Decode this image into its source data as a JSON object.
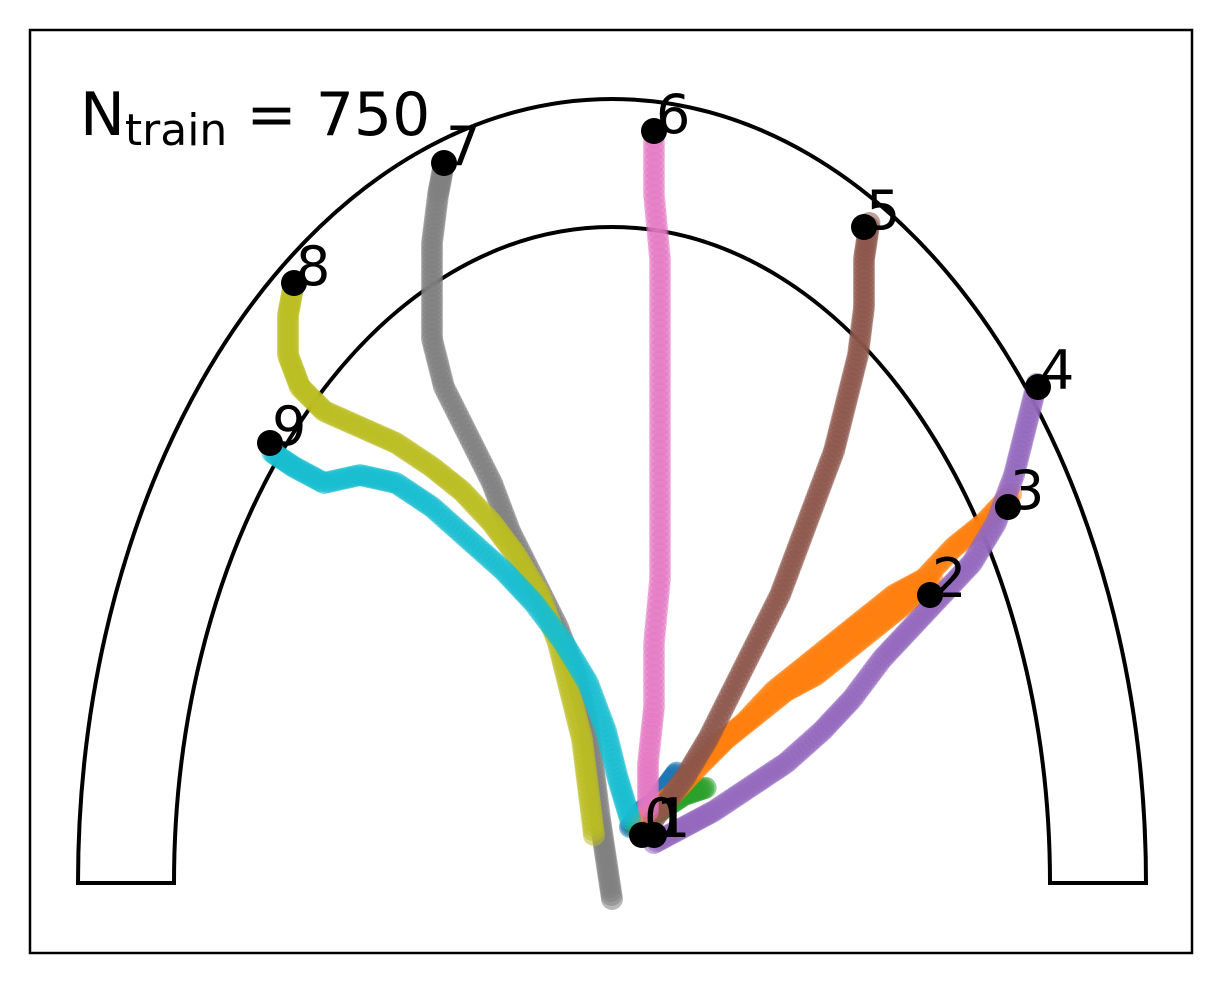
{
  "chart_data": {
    "type": "scatter",
    "annotation": {
      "main": "N",
      "subscript": "train",
      "rest": " = 750"
    },
    "axes": {
      "ticks": "none",
      "grid": false,
      "legend": "none",
      "frame": true
    },
    "arch": {
      "center": [
        0,
        0
      ],
      "outer_radius": 0.89,
      "outer_height": 0.98,
      "inner_radius": 0.73,
      "inner_height": 0.82,
      "xlim": [
        -1.0,
        1.0
      ],
      "ylim": [
        -0.08,
        1.1
      ]
    },
    "series": [
      {
        "label": "0",
        "color": "#1f77b4",
        "points": [
          [
            0.03,
            0.07
          ],
          [
            0.05,
            0.09
          ],
          [
            0.07,
            0.1
          ],
          [
            0.09,
            0.12
          ],
          [
            0.11,
            0.14
          ]
        ],
        "end": [
          0.05,
          0.06
        ]
      },
      {
        "label": "1",
        "color": "#2ca02c",
        "points": [
          [
            0.04,
            0.07
          ],
          [
            0.08,
            0.09
          ],
          [
            0.12,
            0.11
          ],
          [
            0.16,
            0.12
          ]
        ],
        "end": [
          0.07,
          0.06
        ]
      },
      {
        "label": "2",
        "color": "#ff7f0e",
        "points": [
          [
            0.05,
            0.08
          ],
          [
            0.1,
            0.11
          ],
          [
            0.15,
            0.15
          ],
          [
            0.19,
            0.18
          ],
          [
            0.24,
            0.21
          ],
          [
            0.29,
            0.24
          ],
          [
            0.34,
            0.26
          ],
          [
            0.39,
            0.29
          ],
          [
            0.44,
            0.32
          ],
          [
            0.49,
            0.35
          ],
          [
            0.54,
            0.38
          ]
        ],
        "end": [
          0.53,
          0.36
        ]
      },
      {
        "label": "3",
        "color": "#ff7f0e",
        "points": [
          [
            0.17,
            0.17
          ],
          [
            0.22,
            0.2
          ],
          [
            0.27,
            0.24
          ],
          [
            0.32,
            0.27
          ],
          [
            0.37,
            0.3
          ],
          [
            0.42,
            0.33
          ],
          [
            0.47,
            0.36
          ],
          [
            0.52,
            0.38
          ],
          [
            0.57,
            0.42
          ],
          [
            0.62,
            0.45
          ],
          [
            0.67,
            0.49
          ]
        ],
        "end": [
          0.66,
          0.47
        ]
      },
      {
        "label": "4",
        "color": "#9467bd",
        "points": [
          [
            0.07,
            0.05
          ],
          [
            0.12,
            0.07
          ],
          [
            0.17,
            0.09
          ],
          [
            0.23,
            0.12
          ],
          [
            0.29,
            0.15
          ],
          [
            0.35,
            0.19
          ],
          [
            0.4,
            0.23
          ],
          [
            0.45,
            0.28
          ],
          [
            0.5,
            0.32
          ],
          [
            0.55,
            0.36
          ],
          [
            0.6,
            0.4
          ],
          [
            0.64,
            0.45
          ],
          [
            0.67,
            0.51
          ],
          [
            0.69,
            0.57
          ],
          [
            0.71,
            0.63
          ]
        ],
        "end": [
          0.71,
          0.62
        ]
      },
      {
        "label": "5",
        "color": "#8c564b",
        "points": [
          [
            0.07,
            0.08
          ],
          [
            0.12,
            0.13
          ],
          [
            0.16,
            0.18
          ],
          [
            0.2,
            0.24
          ],
          [
            0.24,
            0.3
          ],
          [
            0.28,
            0.36
          ],
          [
            0.31,
            0.42
          ],
          [
            0.34,
            0.48
          ],
          [
            0.37,
            0.54
          ],
          [
            0.39,
            0.6
          ],
          [
            0.41,
            0.66
          ],
          [
            0.42,
            0.72
          ],
          [
            0.42,
            0.78
          ],
          [
            0.43,
            0.83
          ]
        ],
        "end": [
          0.42,
          0.82
        ]
      },
      {
        "label": "6",
        "color": "#e377c2",
        "points": [
          [
            0.06,
            0.09
          ],
          [
            0.06,
            0.15
          ],
          [
            0.07,
            0.22
          ],
          [
            0.07,
            0.3
          ],
          [
            0.08,
            0.38
          ],
          [
            0.08,
            0.46
          ],
          [
            0.08,
            0.54
          ],
          [
            0.08,
            0.62
          ],
          [
            0.08,
            0.7
          ],
          [
            0.08,
            0.78
          ],
          [
            0.07,
            0.86
          ],
          [
            0.07,
            0.94
          ]
        ],
        "end": [
          0.07,
          0.94
        ]
      },
      {
        "label": "7",
        "color": "#7f7f7f",
        "points": [
          [
            0.0,
            -0.02
          ],
          [
            -0.01,
            0.03
          ],
          [
            -0.02,
            0.08
          ],
          [
            -0.03,
            0.14
          ],
          [
            -0.04,
            0.2
          ],
          [
            -0.06,
            0.26
          ],
          [
            -0.09,
            0.32
          ],
          [
            -0.13,
            0.38
          ],
          [
            -0.17,
            0.44
          ],
          [
            -0.2,
            0.5
          ],
          [
            -0.24,
            0.56
          ],
          [
            -0.28,
            0.62
          ],
          [
            -0.3,
            0.68
          ],
          [
            -0.3,
            0.74
          ],
          [
            -0.3,
            0.8
          ],
          [
            -0.29,
            0.86
          ],
          [
            -0.28,
            0.9
          ]
        ],
        "end": [
          -0.28,
          0.9
        ]
      },
      {
        "label": "8",
        "color": "#bcbd22",
        "points": [
          [
            -0.03,
            0.06
          ],
          [
            -0.04,
            0.12
          ],
          [
            -0.05,
            0.18
          ],
          [
            -0.07,
            0.24
          ],
          [
            -0.09,
            0.3
          ],
          [
            -0.12,
            0.36
          ],
          [
            -0.16,
            0.41
          ],
          [
            -0.2,
            0.45
          ],
          [
            -0.25,
            0.49
          ],
          [
            -0.3,
            0.52
          ],
          [
            -0.36,
            0.55
          ],
          [
            -0.42,
            0.57
          ],
          [
            -0.48,
            0.59
          ],
          [
            -0.52,
            0.62
          ],
          [
            -0.54,
            0.66
          ],
          [
            -0.54,
            0.71
          ],
          [
            -0.53,
            0.75
          ]
        ],
        "end": [
          -0.53,
          0.75
        ]
      },
      {
        "label": "9",
        "color": "#17becf",
        "points": [
          [
            0.03,
            0.08
          ],
          [
            0.01,
            0.13
          ],
          [
            -0.01,
            0.19
          ],
          [
            -0.04,
            0.25
          ],
          [
            -0.08,
            0.3
          ],
          [
            -0.13,
            0.35
          ],
          [
            -0.18,
            0.39
          ],
          [
            -0.24,
            0.43
          ],
          [
            -0.3,
            0.47
          ],
          [
            -0.36,
            0.5
          ],
          [
            -0.42,
            0.51
          ],
          [
            -0.48,
            0.5
          ],
          [
            -0.53,
            0.52
          ],
          [
            -0.57,
            0.54
          ]
        ],
        "end": [
          -0.57,
          0.55
        ]
      }
    ]
  },
  "colors": {
    "frame": "#000000",
    "arch": "#000000",
    "endpoint": "#000000",
    "background": "#ffffff"
  }
}
